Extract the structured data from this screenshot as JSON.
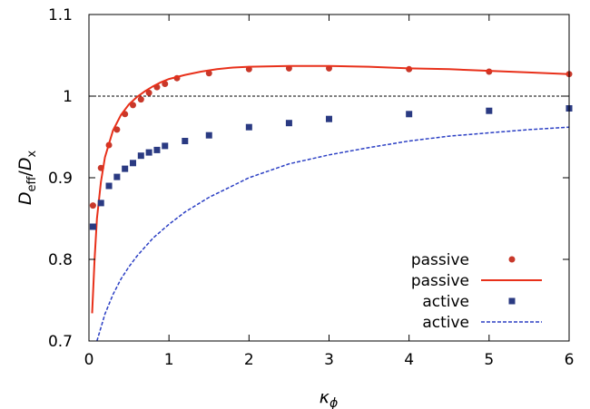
{
  "chart_data": {
    "type": "scatter",
    "xlabel_main": "κ",
    "xlabel_sub": "ϕ",
    "ylabel_main": "D",
    "ylabel_sub1": "eff",
    "ylabel_mid": "/",
    "ylabel_main2": "D",
    "ylabel_sub2": "x",
    "xlim": [
      0,
      6
    ],
    "ylim": [
      0.7,
      1.1
    ],
    "x_ticks": [
      0,
      1,
      2,
      3,
      4,
      5,
      6
    ],
    "y_ticks": [
      0.7,
      0.8,
      0.9,
      1.0,
      1.1
    ],
    "x_tick_labels": [
      "0",
      "1",
      "2",
      "3",
      "4",
      "5",
      "6"
    ],
    "y_tick_labels": [
      "0.7",
      "0.8",
      "0.9",
      "1",
      "1.1"
    ],
    "reference_line_y": 1.0,
    "legend_position": "bottom-right",
    "series": [
      {
        "name": "passive",
        "style": "points-circle",
        "color": "#c8382a",
        "x": [
          0.05,
          0.15,
          0.25,
          0.35,
          0.45,
          0.55,
          0.65,
          0.75,
          0.85,
          0.95,
          1.1,
          1.5,
          2.0,
          2.5,
          3.0,
          4.0,
          5.0,
          6.0
        ],
        "y": [
          0.866,
          0.912,
          0.94,
          0.959,
          0.978,
          0.989,
          0.996,
          1.004,
          1.011,
          1.015,
          1.022,
          1.028,
          1.033,
          1.034,
          1.034,
          1.033,
          1.03,
          1.027
        ]
      },
      {
        "name": "passive",
        "style": "line-solid",
        "color": "#e8301a",
        "x": [
          0.04,
          0.07,
          0.1,
          0.15,
          0.2,
          0.3,
          0.4,
          0.5,
          0.6,
          0.7,
          0.8,
          0.9,
          1.0,
          1.2,
          1.4,
          1.6,
          1.8,
          2.0,
          2.5,
          3.0,
          3.5,
          4.0,
          4.5,
          5.0,
          5.5,
          6.0
        ],
        "y": [
          0.734,
          0.8,
          0.85,
          0.895,
          0.925,
          0.958,
          0.977,
          0.99,
          0.999,
          1.006,
          1.012,
          1.017,
          1.021,
          1.026,
          1.03,
          1.033,
          1.035,
          1.036,
          1.037,
          1.037,
          1.036,
          1.034,
          1.033,
          1.031,
          1.029,
          1.027
        ]
      },
      {
        "name": "active",
        "style": "points-square",
        "color": "#2a3a82",
        "x": [
          0.05,
          0.15,
          0.25,
          0.35,
          0.45,
          0.55,
          0.65,
          0.75,
          0.85,
          0.95,
          1.2,
          1.5,
          2.0,
          2.5,
          3.0,
          4.0,
          5.0,
          6.0
        ],
        "y": [
          0.84,
          0.869,
          0.89,
          0.901,
          0.911,
          0.918,
          0.927,
          0.931,
          0.934,
          0.939,
          0.945,
          0.952,
          0.962,
          0.967,
          0.972,
          0.978,
          0.982,
          0.985
        ]
      },
      {
        "name": "active",
        "style": "line-dashed",
        "color": "#2b3fc4",
        "x": [
          0.1,
          0.2,
          0.3,
          0.4,
          0.5,
          0.6,
          0.8,
          1.0,
          1.2,
          1.5,
          2.0,
          2.5,
          3.0,
          3.5,
          4.0,
          4.5,
          5.0,
          5.5,
          6.0
        ],
        "y": [
          0.7,
          0.733,
          0.757,
          0.776,
          0.791,
          0.804,
          0.826,
          0.843,
          0.858,
          0.876,
          0.9,
          0.917,
          0.928,
          0.937,
          0.945,
          0.951,
          0.955,
          0.959,
          0.962
        ]
      }
    ]
  }
}
